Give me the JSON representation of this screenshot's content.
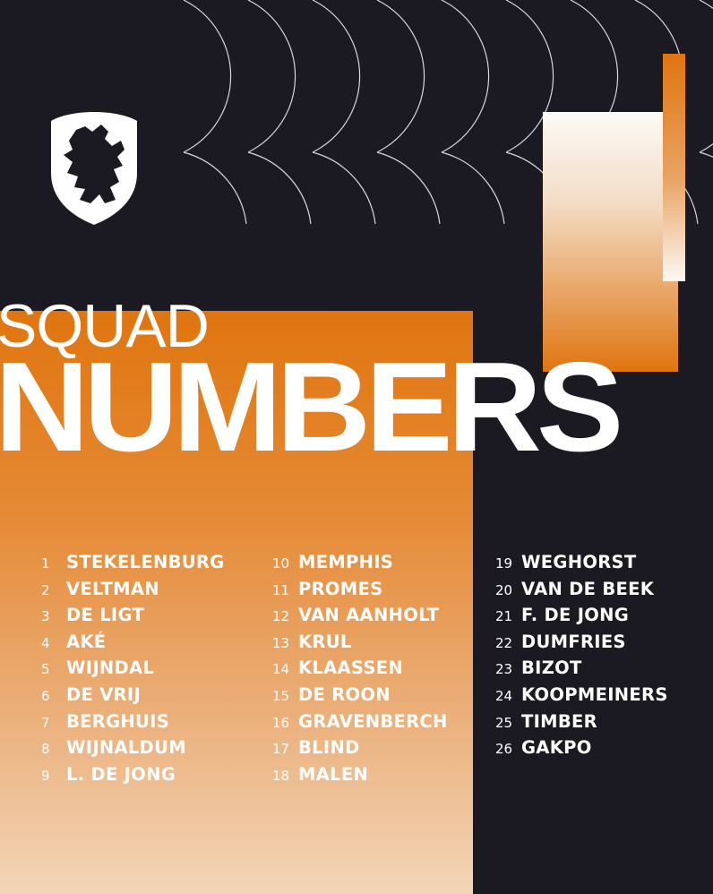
{
  "title": {
    "line1": "SQUAD",
    "line2": "NUMBERS"
  },
  "colors": {
    "background": "#1b1a22",
    "orange": "#e0750f",
    "text": "#ffffff"
  },
  "logo": {
    "icon": "knvb-lion-crest-icon"
  },
  "squad": [
    [
      {
        "number": "1",
        "name": "STEKELENBURG"
      },
      {
        "number": "2",
        "name": "VELTMAN"
      },
      {
        "number": "3",
        "name": "DE LIGT"
      },
      {
        "number": "4",
        "name": "AKÉ"
      },
      {
        "number": "5",
        "name": "WIJNDAL"
      },
      {
        "number": "6",
        "name": "DE VRIJ"
      },
      {
        "number": "7",
        "name": "BERGHUIS"
      },
      {
        "number": "8",
        "name": "WIJNALDUM"
      },
      {
        "number": "9",
        "name": "L. DE JONG"
      }
    ],
    [
      {
        "number": "10",
        "name": "MEMPHIS"
      },
      {
        "number": "11",
        "name": "PROMES"
      },
      {
        "number": "12",
        "name": "VAN AANHOLT"
      },
      {
        "number": "13",
        "name": "KRUL"
      },
      {
        "number": "14",
        "name": "KLAASSEN"
      },
      {
        "number": "15",
        "name": "DE ROON"
      },
      {
        "number": "16",
        "name": "GRAVENBERCH"
      },
      {
        "number": "17",
        "name": "BLIND"
      },
      {
        "number": "18",
        "name": "MALEN"
      }
    ],
    [
      {
        "number": "19",
        "name": "WEGHORST"
      },
      {
        "number": "20",
        "name": "VAN DE BEEK"
      },
      {
        "number": "21",
        "name": "F. DE JONG"
      },
      {
        "number": "22",
        "name": "DUMFRIES"
      },
      {
        "number": "23",
        "name": "BIZOT"
      },
      {
        "number": "24",
        "name": "KOOPMEINERS"
      },
      {
        "number": "25",
        "name": "TIMBER"
      },
      {
        "number": "26",
        "name": "GAKPO"
      }
    ]
  ]
}
